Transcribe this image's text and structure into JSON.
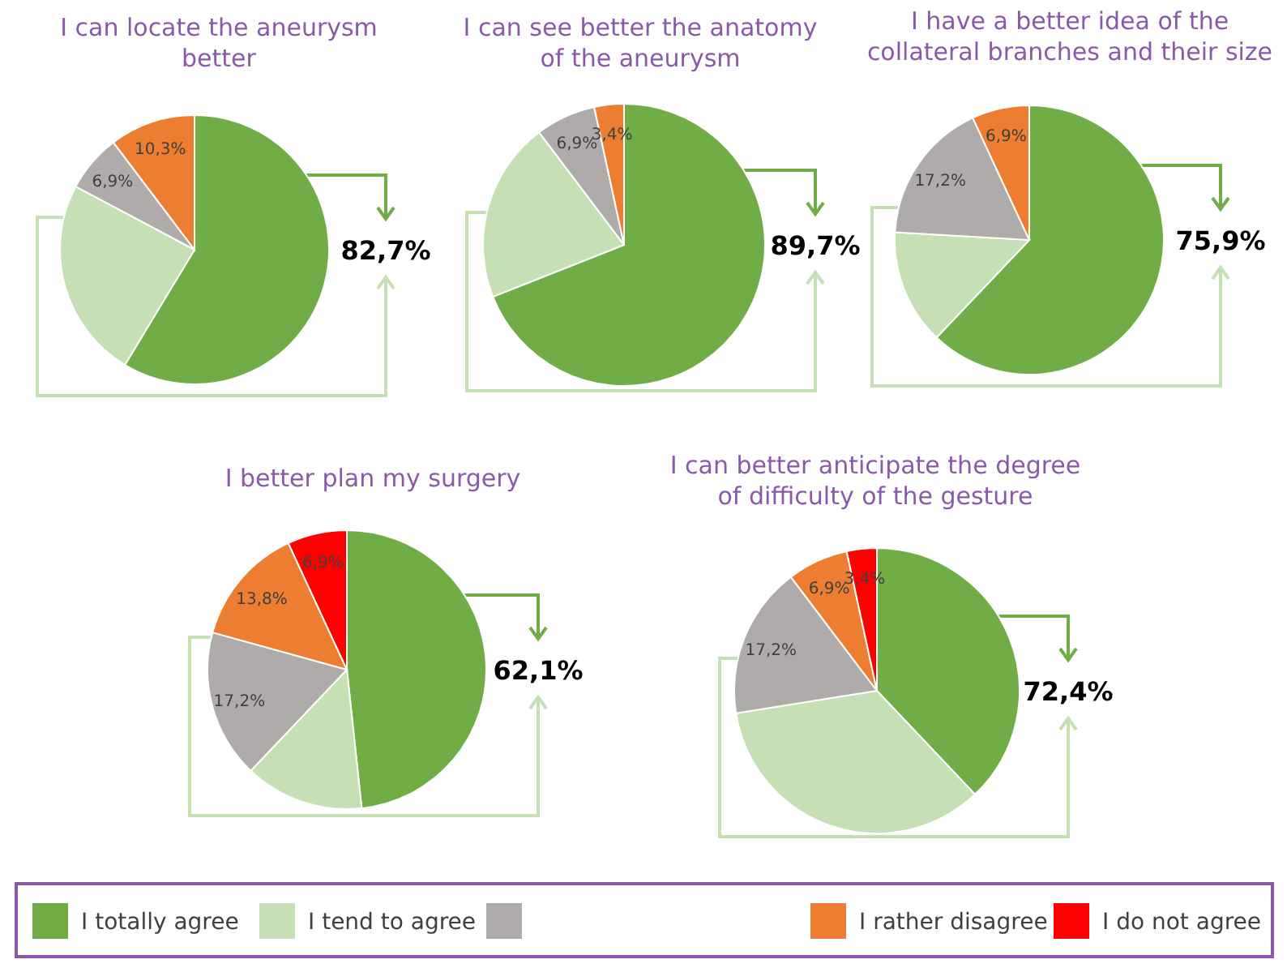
{
  "chart_data": [
    {
      "type": "pie",
      "title": "I can locate the aneurysm better",
      "categories": [
        null,
        null,
        null,
        null,
        null
      ],
      "values": [
        58.6,
        24.1,
        6.9,
        10.3,
        0
      ],
      "colors": [
        "#70ad47",
        "#c5e0b4",
        "#afabab",
        "#ed7d31",
        "#ff0000"
      ],
      "value_labels": [
        null,
        null,
        "6,9%",
        "10,3%",
        null
      ],
      "annotations": [
        "82,7%"
      ]
    },
    {
      "type": "pie",
      "title": "I can see better the anatomy of the aneurysm",
      "categories": [
        null,
        null,
        null,
        null,
        null
      ],
      "values": [
        69.0,
        20.7,
        6.9,
        3.4,
        0
      ],
      "colors": [
        "#70ad47",
        "#c5e0b4",
        "#afabab",
        "#ed7d31",
        "#ff0000"
      ],
      "value_labels": [
        null,
        null,
        "6,9%",
        "3,4%",
        null
      ],
      "annotations": [
        "89,7%"
      ]
    },
    {
      "type": "pie",
      "title": "I have a better idea of the collateral branches and their size",
      "categories": [
        null,
        null,
        null,
        null,
        null
      ],
      "values": [
        62.1,
        13.8,
        17.2,
        6.9,
        0
      ],
      "colors": [
        "#70ad47",
        "#c5e0b4",
        "#afabab",
        "#ed7d31",
        "#ff0000"
      ],
      "value_labels": [
        null,
        null,
        "17,2%",
        "6,9%",
        null
      ],
      "annotations": [
        "75,9%"
      ]
    },
    {
      "type": "pie",
      "title": "I better plan my surgery",
      "categories": [
        null,
        null,
        null,
        null,
        null
      ],
      "values": [
        48.3,
        13.8,
        17.2,
        13.8,
        6.9
      ],
      "colors": [
        "#70ad47",
        "#c5e0b4",
        "#afabab",
        "#ed7d31",
        "#ff0000"
      ],
      "value_labels": [
        null,
        null,
        "17,2%",
        "13,8%",
        "6,9%"
      ],
      "annotations": [
        "62,1%"
      ]
    },
    {
      "type": "pie",
      "title": "I can better anticipate the degree of difficulty of the gesture",
      "categories": [
        "I totally agree",
        "I tend to agree",
        null,
        "I rather disagree",
        "I do not agree"
      ],
      "values": [
        37.9,
        34.5,
        17.2,
        6.9,
        3.4
      ],
      "colors": [
        "#70ad47",
        "#c5e0b4",
        "#afabab",
        "#ed7d31",
        "#ff0000"
      ],
      "value_labels": [
        null,
        null,
        "17,2%",
        "6,9%",
        "3,4%"
      ],
      "annotations": [
        "72,4%"
      ],
      "legend": "bottom"
    }
  ]
}
